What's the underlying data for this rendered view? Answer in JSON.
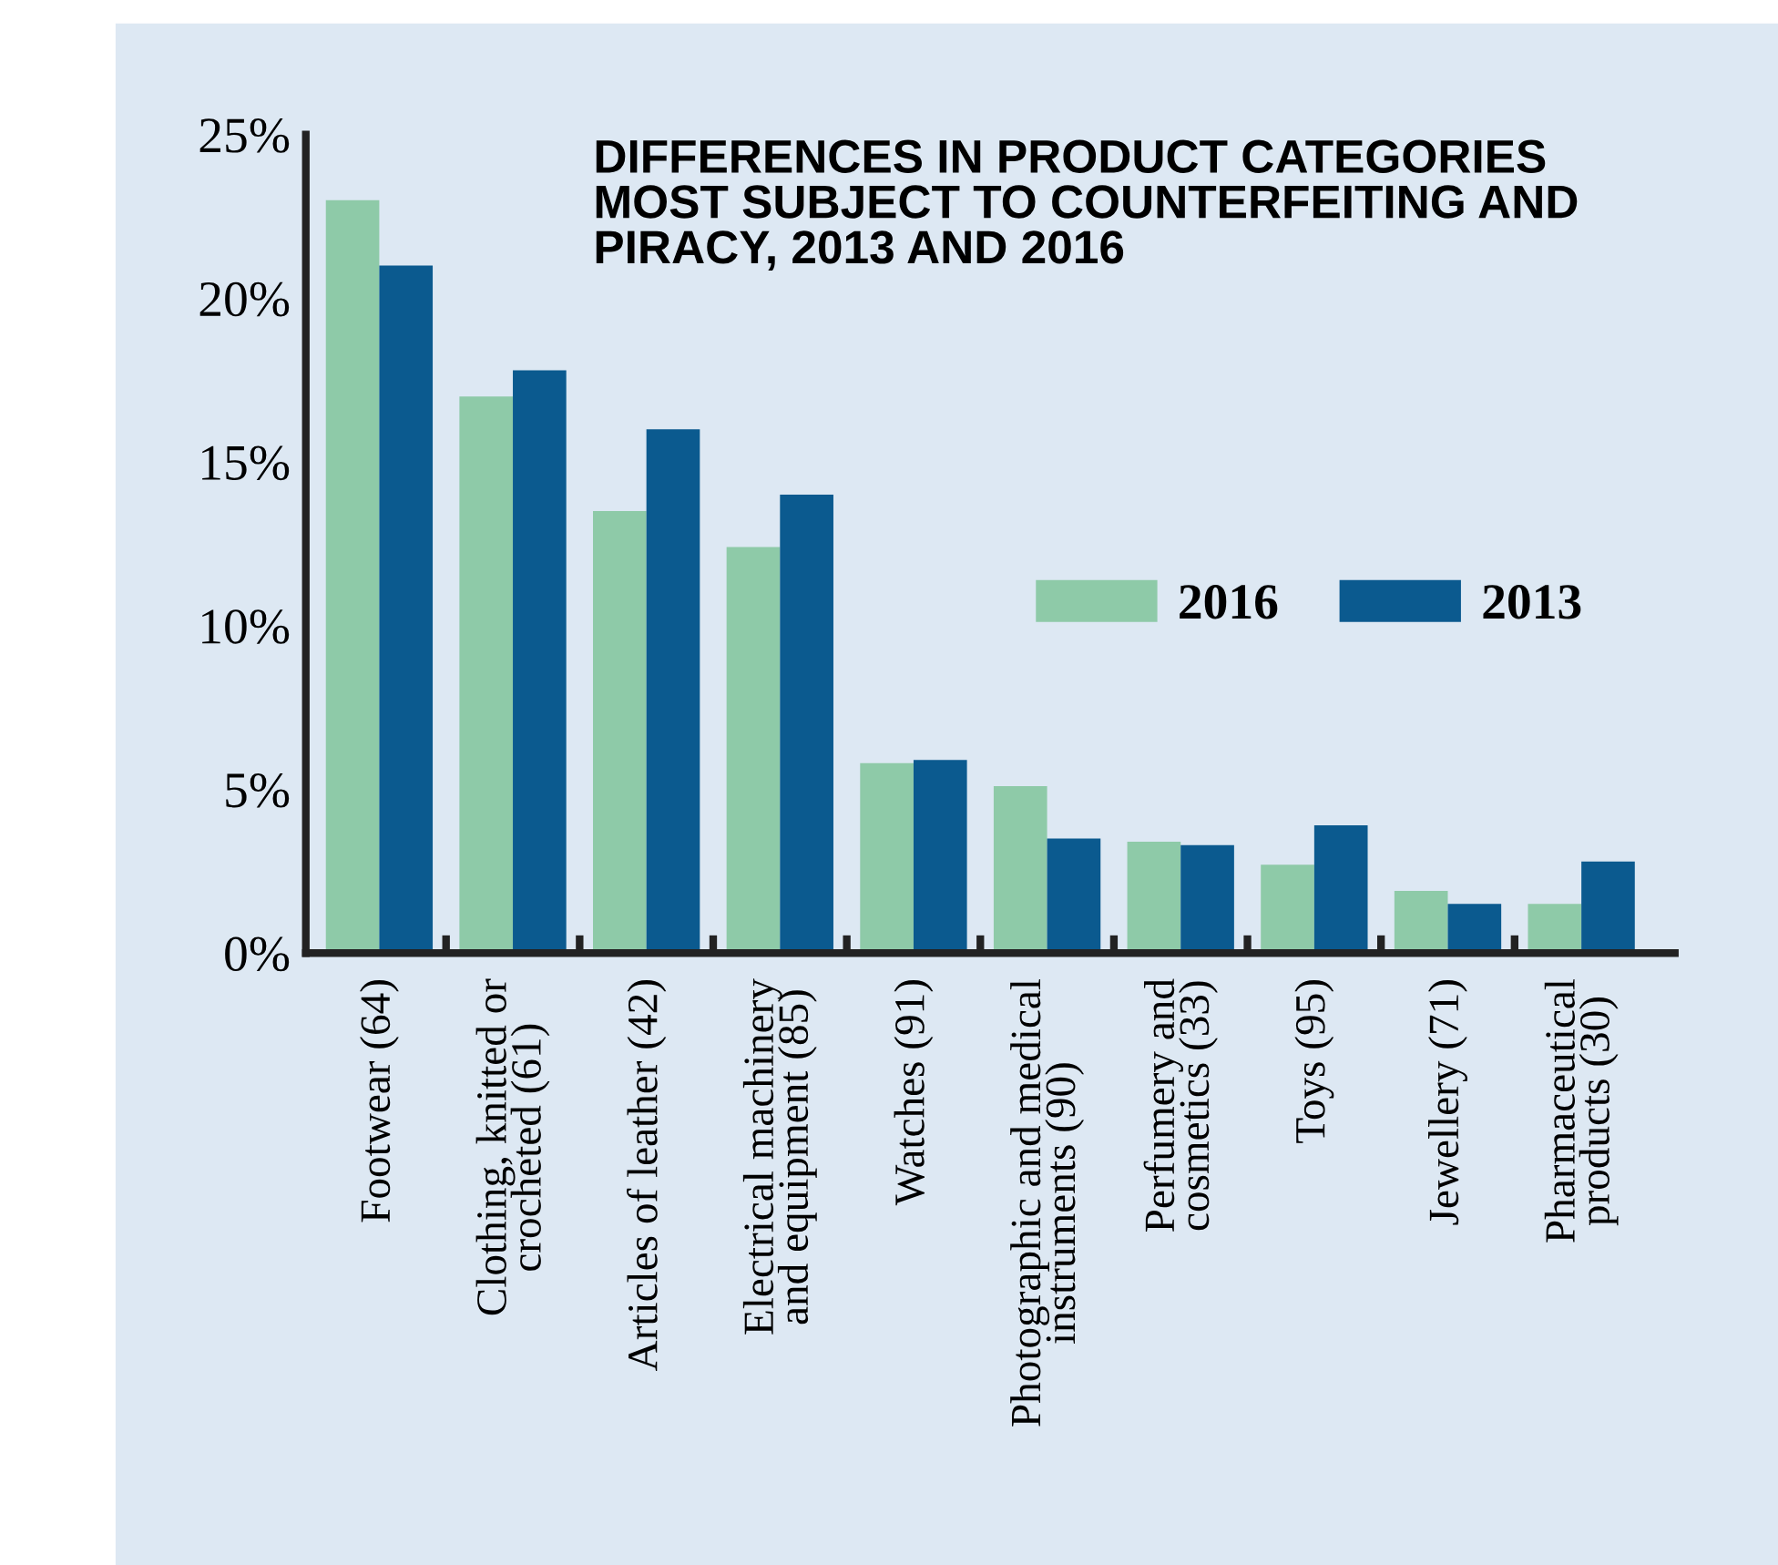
{
  "chart_data": {
    "type": "bar",
    "title": "DIFFERENCES IN PRODUCT CATEGORIES\nMOST SUBJECT TO COUNTERFEITING AND\nPIRACY, 2013 AND 2016",
    "categories": [
      "Footwear (64)",
      "Clothing, knitted or\ncrocheted (61)",
      "Articles of leather (42)",
      "Electrical machinery\nand equipment (85)",
      "Watches (91)",
      "Photographic and medical\ninstruments (90)",
      "Perfumery and\ncosmetics (33)",
      "Toys (95)",
      "Jewellery (71)",
      "Pharmaceutical\nproducts (30)"
    ],
    "series": [
      {
        "name": "2016",
        "color": "#8ecaa8",
        "values": [
          23.0,
          17.0,
          13.5,
          12.4,
          5.8,
          5.1,
          3.4,
          2.7,
          1.9,
          1.5
        ]
      },
      {
        "name": "2013",
        "color": "#0b5a8f",
        "values": [
          21.0,
          17.8,
          16.0,
          14.0,
          5.9,
          3.5,
          3.3,
          3.9,
          1.5,
          2.8
        ]
      }
    ],
    "ylim": [
      0,
      25
    ],
    "yticks": [
      {
        "value": 0,
        "label": "0%"
      },
      {
        "value": 5,
        "label": "5%"
      },
      {
        "value": 10,
        "label": "10%"
      },
      {
        "value": 15,
        "label": "15%"
      },
      {
        "value": 20,
        "label": "20%"
      },
      {
        "value": 25,
        "label": "25%"
      }
    ],
    "grid": false,
    "legend": "right"
  }
}
